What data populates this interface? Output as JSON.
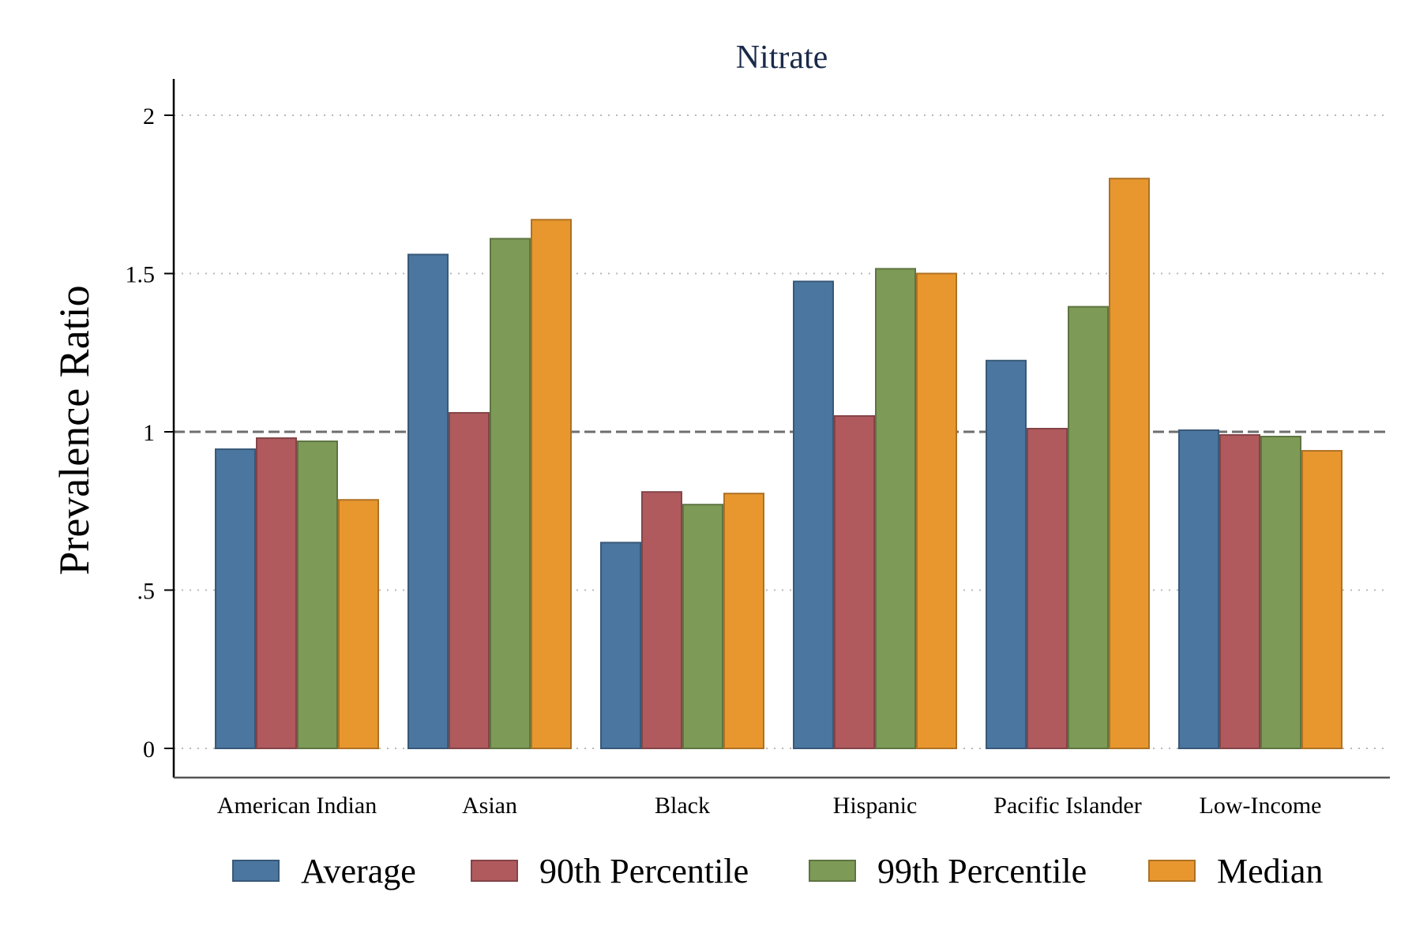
{
  "chart_data": {
    "type": "bar",
    "title": "Nitrate",
    "xlabel": "",
    "ylabel": "Prevalence Ratio",
    "ylim": [
      0,
      2.1
    ],
    "yticks": [
      {
        "value": 0,
        "label": "0"
      },
      {
        "value": 0.5,
        "label": ".5"
      },
      {
        "value": 1,
        "label": "1"
      },
      {
        "value": 1.5,
        "label": "1.5"
      },
      {
        "value": 2,
        "label": "2"
      }
    ],
    "reference_line": 1,
    "grid": true,
    "legend_position": "bottom",
    "categories": [
      "American Indian",
      "Asian",
      "Black",
      "Hispanic",
      "Pacific Islander",
      "Low-Income"
    ],
    "series": [
      {
        "name": "Average",
        "color": "#4a76a0",
        "values": [
          0.945,
          1.56,
          0.65,
          1.475,
          1.225,
          1.005
        ]
      },
      {
        "name": "90th Percentile",
        "color": "#b05a5e",
        "values": [
          0.98,
          1.06,
          0.81,
          1.05,
          1.01,
          0.99
        ]
      },
      {
        "name": "99th Percentile",
        "color": "#7d9b57",
        "values": [
          0.97,
          1.61,
          0.77,
          1.515,
          1.395,
          0.985
        ]
      },
      {
        "name": "Median",
        "color": "#e8972f",
        "values": [
          0.785,
          1.67,
          0.805,
          1.5,
          1.8,
          0.94
        ]
      }
    ]
  }
}
